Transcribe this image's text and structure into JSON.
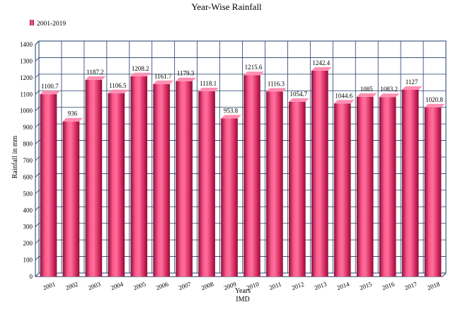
{
  "chart_data": {
    "type": "bar",
    "title": "Year-Wise Rainfall",
    "legend": {
      "label": "2001-2019",
      "placement": "top-left"
    },
    "xlabel": "Years",
    "subtitle_below_axis": "IMD",
    "ylabel": "Rainfall in mm",
    "ylim": [
      0,
      1400
    ],
    "ytick_step": 100,
    "grid": true,
    "categories": [
      "2001",
      "2002",
      "2003",
      "2004",
      "2005",
      "2006",
      "2007",
      "2008",
      "2009",
      "2010",
      "2011",
      "2012",
      "2013",
      "2014",
      "2015",
      "2016",
      "2017",
      "2018"
    ],
    "series": [
      {
        "name": "2001-2019",
        "color": "#e8336d",
        "values": [
          1100.7,
          936,
          1187.2,
          1106.5,
          1208.2,
          1161.7,
          1179.3,
          1118.1,
          953.8,
          1215.6,
          1116.3,
          1054.7,
          1242.4,
          1044.6,
          1085,
          1083.2,
          1127,
          1020.8
        ],
        "value_labels": [
          "1100.7",
          "936",
          "1187.2",
          "1106.5",
          "1208.2",
          "1161.7",
          "1179.3",
          "1118.1",
          "953.8",
          "1215.6",
          "1116.3",
          "1054.7",
          "1242.4",
          "1044.6",
          "1085",
          "1083.2",
          "1127",
          "1020.8"
        ]
      }
    ]
  }
}
